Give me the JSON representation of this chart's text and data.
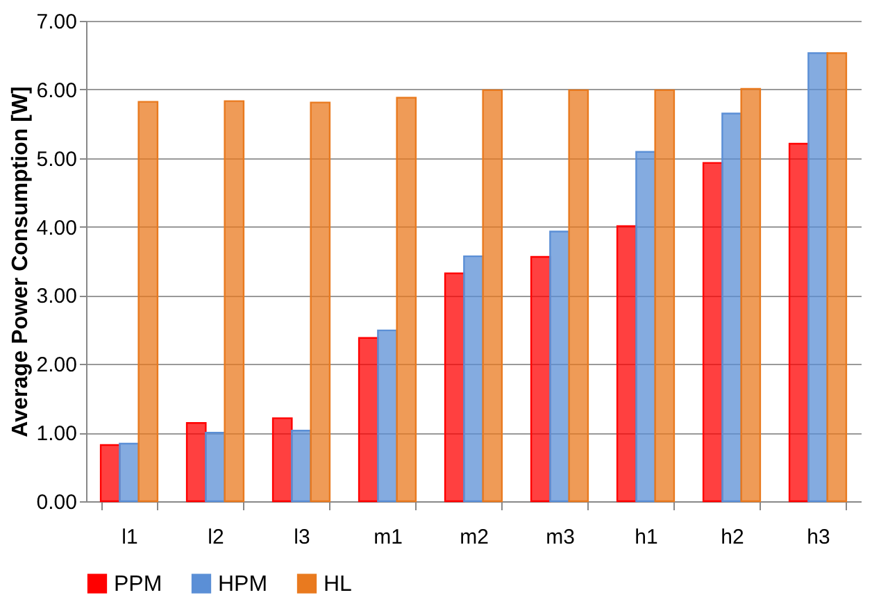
{
  "chart_data": {
    "type": "bar",
    "ylabel": "Average Power Consumption [W]",
    "categories": [
      "l1",
      "l2",
      "l3",
      "m1",
      "m2",
      "m3",
      "h1",
      "h2",
      "h3"
    ],
    "series": [
      {
        "name": "PPM",
        "color": "#ff0000",
        "values": [
          0.82,
          1.14,
          1.21,
          2.38,
          3.32,
          3.56,
          4.01,
          4.93,
          5.21
        ]
      },
      {
        "name": "HPM",
        "color": "#5b8fd6",
        "values": [
          0.84,
          1.0,
          1.03,
          2.49,
          3.57,
          3.93,
          5.09,
          5.65,
          6.53
        ]
      },
      {
        "name": "HL",
        "color": "#e97a1f",
        "values": [
          5.82,
          5.83,
          5.81,
          5.88,
          5.99,
          5.99,
          5.99,
          6.01,
          6.53
        ]
      }
    ],
    "ylim": [
      0,
      7
    ],
    "yticks": [
      {
        "value": 0,
        "label": "0.00"
      },
      {
        "value": 1,
        "label": "1.00"
      },
      {
        "value": 2,
        "label": "2.00"
      },
      {
        "value": 3,
        "label": "3.00"
      },
      {
        "value": 4,
        "label": "4.00"
      },
      {
        "value": 5,
        "label": "5.00"
      },
      {
        "value": 6,
        "label": "6.00"
      },
      {
        "value": 7,
        "label": "7.00"
      }
    ],
    "grid": "y",
    "legend": "bottom"
  }
}
